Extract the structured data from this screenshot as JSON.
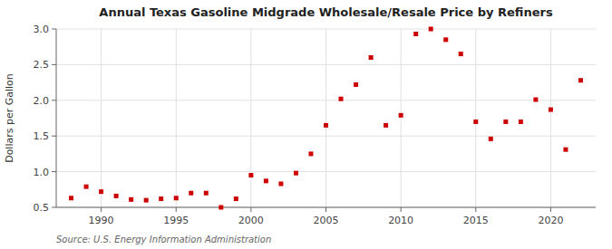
{
  "chart_data": {
    "type": "scatter",
    "title": "Annual Texas Gasoline Midgrade Wholesale/Resale Price by Refiners",
    "y_label": "Dollars per Gallon",
    "annotations": [
      "Source: U.S. Energy Information Administration"
    ],
    "x": [
      1988,
      1989,
      1990,
      1991,
      1992,
      1993,
      1994,
      1995,
      1996,
      1997,
      1998,
      1999,
      2000,
      2001,
      2002,
      2003,
      2004,
      2005,
      2006,
      2007,
      2008,
      2009,
      2010,
      2011,
      2012,
      2013,
      2014,
      2015,
      2016,
      2017,
      2018,
      2019,
      2020,
      2021,
      2022
    ],
    "values": [
      0.63,
      0.79,
      0.72,
      0.66,
      0.61,
      0.6,
      0.62,
      0.63,
      0.7,
      0.7,
      0.5,
      0.62,
      0.95,
      0.87,
      0.83,
      0.98,
      1.25,
      1.65,
      2.02,
      2.22,
      2.6,
      1.65,
      1.79,
      2.93,
      3.0,
      2.85,
      2.65,
      1.7,
      1.46,
      1.7,
      1.7,
      2.01,
      1.87,
      1.31,
      2.28
    ],
    "color": "#CC0000",
    "marker": "square",
    "xlim": [
      1987,
      2023
    ],
    "ylim": [
      0.5,
      3.0
    ],
    "xticks": [
      1990,
      1995,
      2000,
      2005,
      2010,
      2015,
      2020
    ],
    "yticks": [
      0.5,
      {
        "value": 1.0,
        "label": "1.0"
      },
      1.5,
      {
        "value": 2.0,
        "label": "2.0"
      },
      2.5,
      {
        "value": 3.0,
        "label": "3.0"
      }
    ],
    "grid": true
  }
}
